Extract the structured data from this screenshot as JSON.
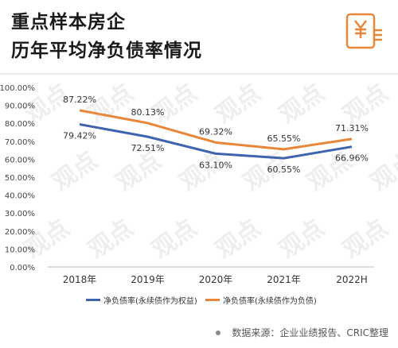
{
  "header": {
    "title_line1": "重点样本房企",
    "title_line2": "历年平均净负债率情况",
    "icon": "yen-document-icon",
    "accent_color": "#e8873a"
  },
  "chart_data": {
    "type": "line",
    "categories": [
      "2018年",
      "2019年",
      "2020年",
      "2021年",
      "2022H"
    ],
    "ylim": [
      0,
      100
    ],
    "y_ticks": [
      "0.00%",
      "10.00%",
      "20.00%",
      "30.00%",
      "40.00%",
      "50.00%",
      "60.00%",
      "70.00%",
      "80.00%",
      "90.00%",
      "100.00%"
    ],
    "grid": false,
    "legend_position": "bottom",
    "series": [
      {
        "name": "净负债率(永续债作为权益)",
        "color": "#3e64b0",
        "values": [
          79.42,
          72.51,
          63.1,
          60.55,
          66.96
        ],
        "labels": [
          "79.42%",
          "72.51%",
          "63.10%",
          "60.55%",
          "66.96%"
        ]
      },
      {
        "name": "净负债率(永续债作为负债)",
        "color": "#e8873a",
        "values": [
          87.22,
          80.13,
          69.32,
          65.55,
          71.31
        ],
        "labels": [
          "87.22%",
          "80.13%",
          "69.32%",
          "65.55%",
          "71.31%"
        ]
      }
    ]
  },
  "source": {
    "text": "数据来源：企业业绩报告、CRIC整理"
  }
}
